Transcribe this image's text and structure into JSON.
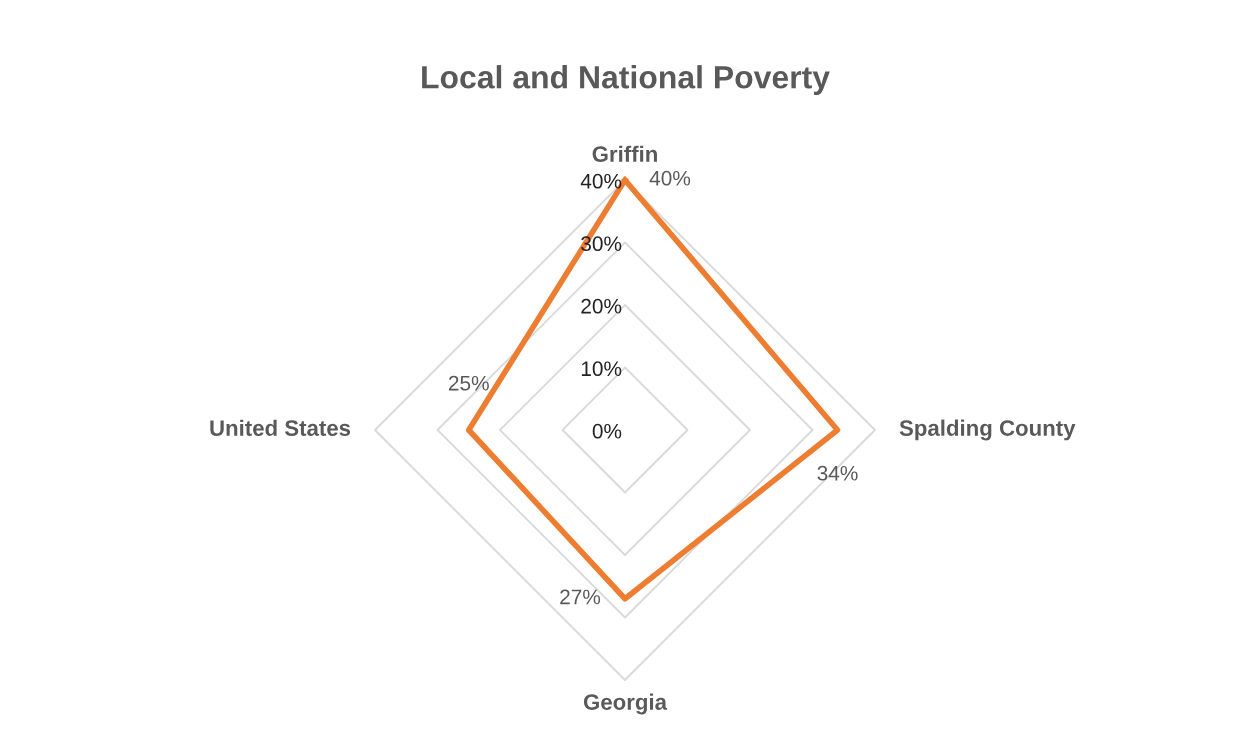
{
  "chart_data": {
    "type": "radar",
    "title": "Local and National Poverty",
    "categories": [
      "Griffin",
      "Spalding County",
      "Georgia",
      "United States"
    ],
    "series": [
      {
        "color": "#ed7d31",
        "values": [
          40,
          34,
          27,
          25
        ],
        "value_labels": [
          "40%",
          "34%",
          "27%",
          "25%"
        ]
      }
    ],
    "ylim": [
      0,
      40
    ],
    "yticks": [
      {
        "value": 0,
        "label": "0%"
      },
      {
        "value": 10,
        "label": "10%"
      },
      {
        "value": 20,
        "label": "20%"
      },
      {
        "value": 30,
        "label": "30%"
      },
      {
        "value": 40,
        "label": "40%"
      }
    ],
    "grid": true
  }
}
